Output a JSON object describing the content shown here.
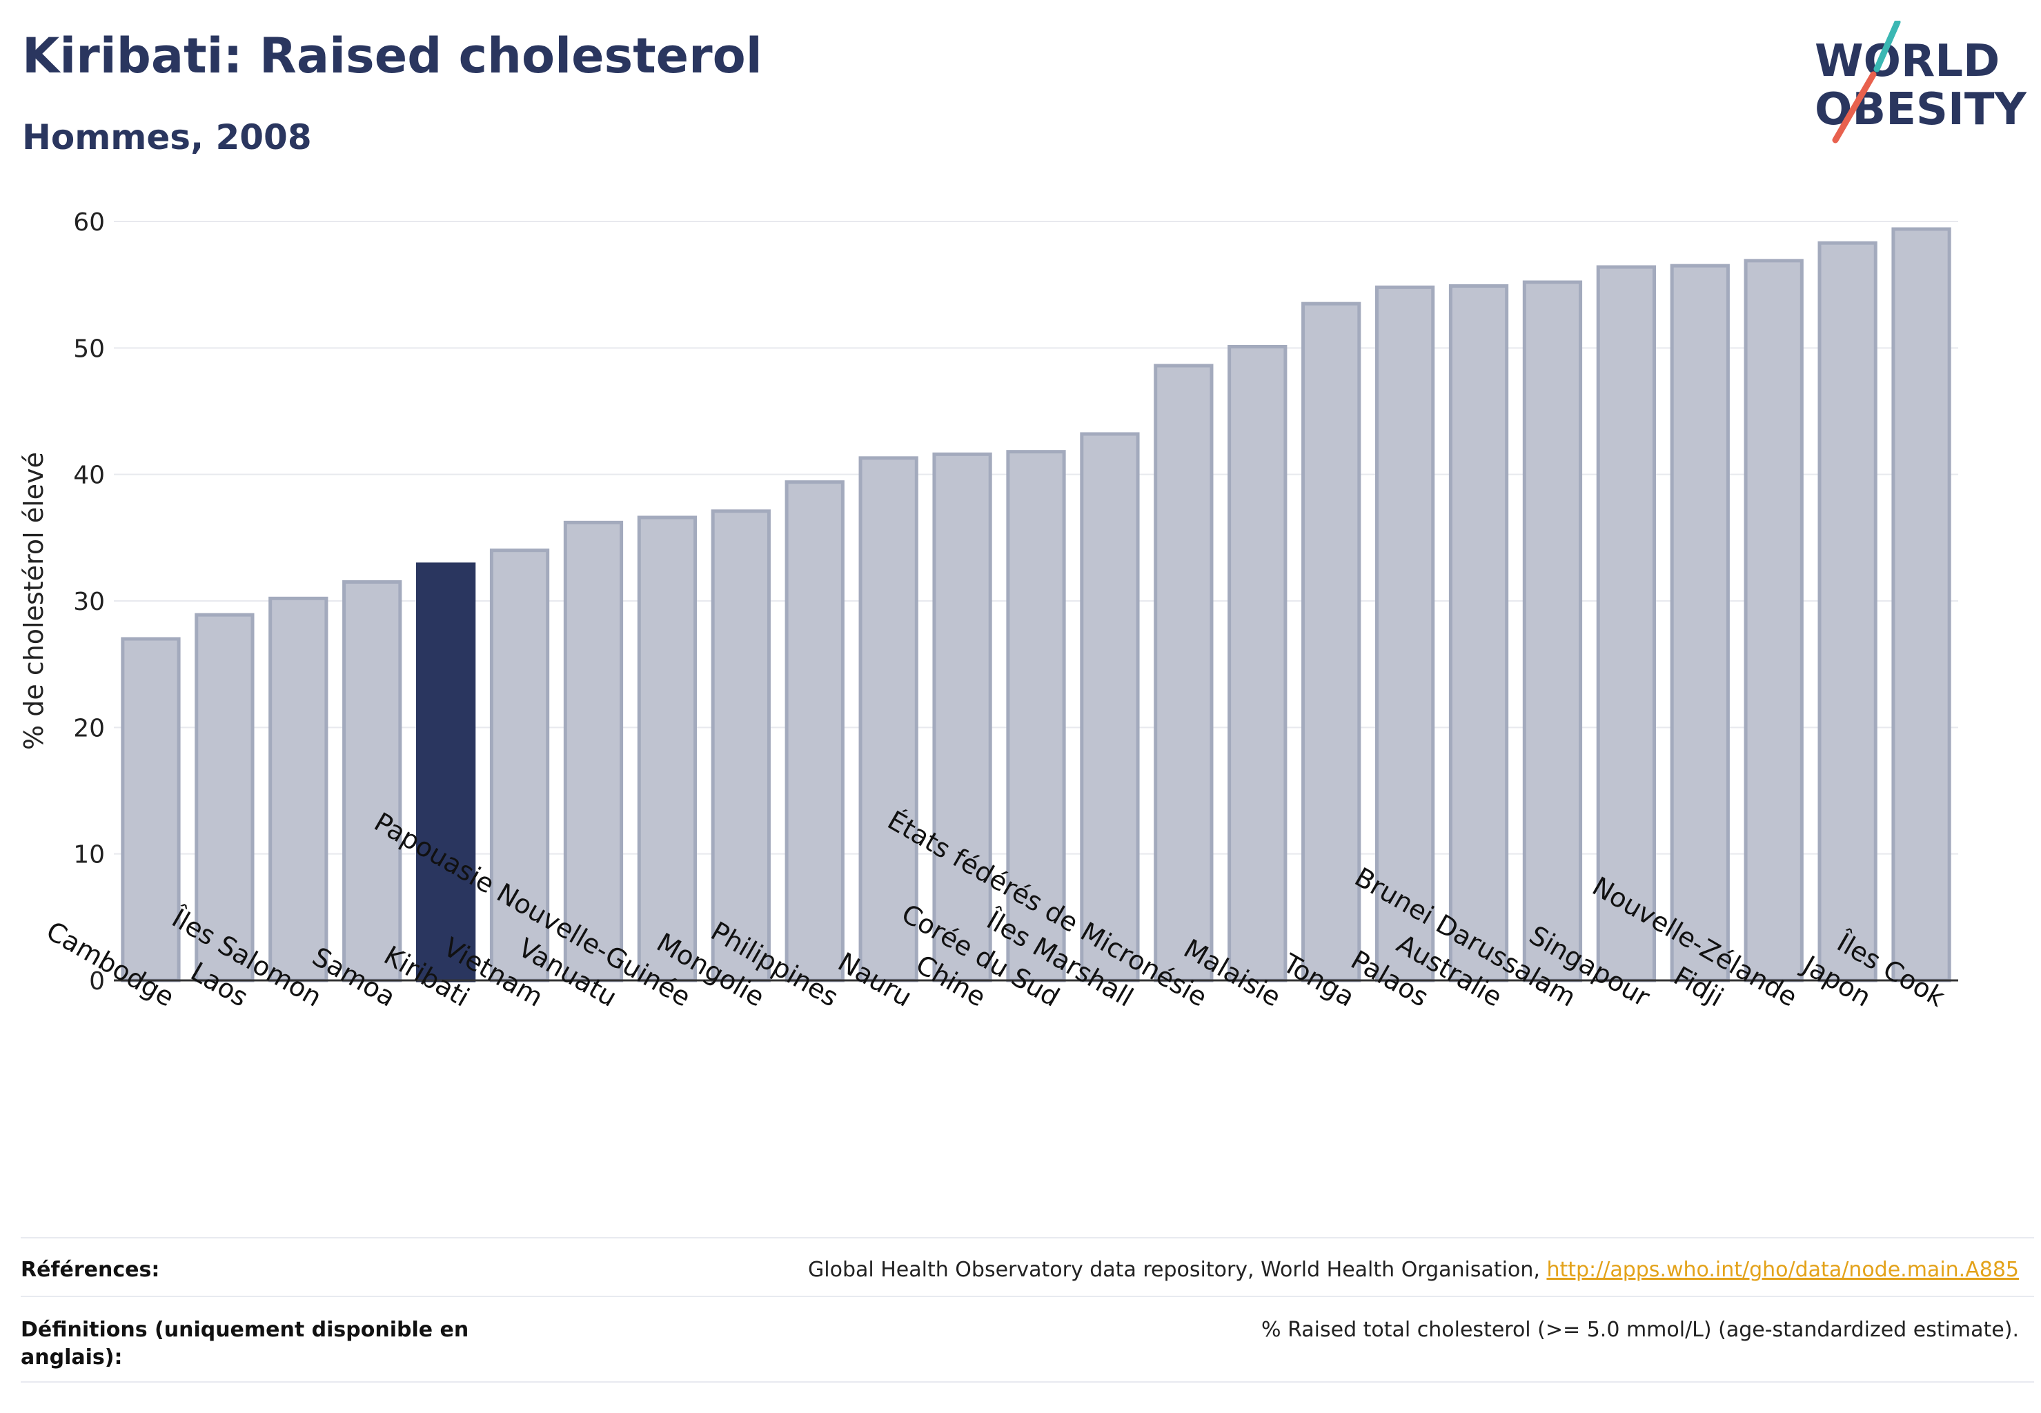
{
  "header": {
    "title": "Kiribati: Raised cholesterol",
    "subtitle": "Hommes, 2008"
  },
  "logo": {
    "line1": "WORLD",
    "line2": "OBESITY"
  },
  "colors": {
    "bar": "#bfc3d0",
    "bar_stroke": "#a3aabd",
    "highlight": "#2a365f",
    "grid": "#e8e9ee",
    "axis": "#333333",
    "title": "#2a365f",
    "link": "#e3a21a",
    "logo_teal": "#3ab7b3",
    "logo_red": "#e8614e"
  },
  "chart_data": {
    "type": "bar",
    "title": "Kiribati: Raised cholesterol",
    "subtitle": "Hommes, 2008",
    "xlabel": "",
    "ylabel": "% de cholestérol élevé",
    "ylim": [
      0,
      60
    ],
    "yticks": [
      0,
      10,
      20,
      30,
      40,
      50,
      60
    ],
    "grid": true,
    "legend": "none",
    "highlight": "Kiribati",
    "categories": [
      "Cambodge",
      "Laos",
      "Îles Salomon",
      "Samoa",
      "Kiribati",
      "Vietnam",
      "Vanuatu",
      "Papouasie Nouvelle-Guinée",
      "Mongolie",
      "Philippines",
      "Nauru",
      "Chine",
      "Corée du Sud",
      "Îles Marshall",
      "États fédérés de Micronésie",
      "Malaisie",
      "Tonga",
      "Palaos",
      "Australie",
      "Brunei Darussalam",
      "Singapour",
      "Fidji",
      "Nouvelle-Zélande",
      "Japon",
      "Îles Cook"
    ],
    "values": [
      27.0,
      28.9,
      30.2,
      31.5,
      32.9,
      34.0,
      36.2,
      36.6,
      37.1,
      39.4,
      41.3,
      41.6,
      41.8,
      43.2,
      48.6,
      50.1,
      53.5,
      54.8,
      54.9,
      55.2,
      56.4,
      56.5,
      56.9,
      58.3,
      59.4
    ]
  },
  "footer": {
    "references_label": "Références:",
    "references_text": "Global Health Observatory data repository, World Health Organisation, ",
    "references_link": "http://apps.who.int/gho/data/node.main.A885",
    "definitions_label": "Définitions (uniquement disponible en anglais):",
    "definitions_text": "% Raised total cholesterol (>= 5.0 mmol/L) (age-standardized estimate)."
  }
}
